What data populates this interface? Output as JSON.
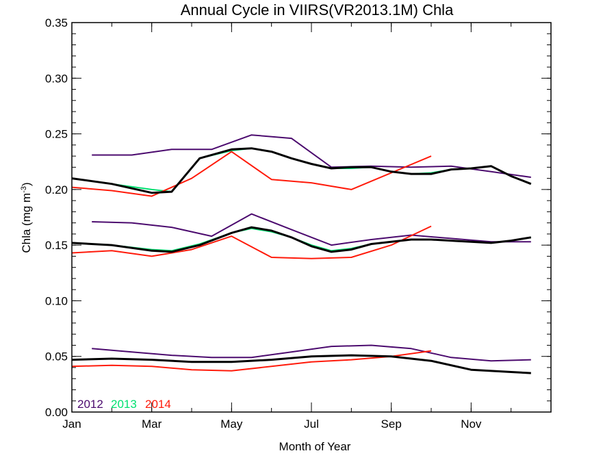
{
  "chart_data": {
    "type": "line",
    "title": "Annual Cycle in VIIRS(VR2013.1M) Chla",
    "xlabel": "Month of Year",
    "ylabel_main": "Chla (mg m",
    "ylabel_sup": "-3",
    "ylabel_close": ")",
    "xlim": [
      0,
      12
    ],
    "ylim": [
      0,
      0.35
    ],
    "x_ticks": [
      {
        "value": 0,
        "label": "Jan"
      },
      {
        "value": 2,
        "label": "Mar"
      },
      {
        "value": 4,
        "label": "May"
      },
      {
        "value": 6,
        "label": "Jul"
      },
      {
        "value": 8,
        "label": "Sep"
      },
      {
        "value": 10,
        "label": "Nov"
      }
    ],
    "y_ticks": [
      {
        "value": 0.0,
        "label": "0.00"
      },
      {
        "value": 0.05,
        "label": "0.05"
      },
      {
        "value": 0.1,
        "label": "0.10"
      },
      {
        "value": 0.15,
        "label": "0.15"
      },
      {
        "value": 0.2,
        "label": "0.20"
      },
      {
        "value": 0.25,
        "label": "0.25"
      },
      {
        "value": 0.3,
        "label": "0.30"
      },
      {
        "value": 0.35,
        "label": "0.35"
      }
    ],
    "y_minor_step": 0.01,
    "legend_position": "bottom-left",
    "legend": [
      {
        "label": "2012",
        "color": "#4b0a6e"
      },
      {
        "label": "2013",
        "color": "#00e070"
      },
      {
        "label": "2014",
        "color": "#ff1a0a"
      }
    ],
    "series": [
      {
        "name": "2012",
        "color": "#4b0a6e",
        "width": 2,
        "x": [
          0.5,
          1.5,
          2.5,
          3.5,
          4.5,
          5.5,
          6.5,
          7.5,
          8.5,
          9.5,
          10.5,
          11.5
        ],
        "y": [
          0.231,
          0.231,
          0.236,
          0.236,
          0.249,
          0.246,
          0.22,
          0.221,
          0.22,
          0.221,
          0.216,
          0.211
        ]
      },
      {
        "name": "2013",
        "color": "#00e070",
        "width": 2,
        "x": [
          0,
          1,
          2,
          2.5,
          3.2,
          4.0,
          4.5,
          5.0,
          5.5,
          6.0,
          6.5,
          7.0,
          7.5,
          8.0,
          8.5,
          9.0,
          9.5,
          10.0,
          10.5,
          11.0,
          11.5
        ],
        "y": [
          0.21,
          0.205,
          0.2,
          0.198,
          0.228,
          0.235,
          0.237,
          0.234,
          0.228,
          0.223,
          0.219,
          0.219,
          0.22,
          0.216,
          0.214,
          0.215,
          0.218,
          0.219,
          0.221,
          0.212,
          0.205
        ]
      },
      {
        "name": "2014",
        "color": "#ff1a0a",
        "width": 2,
        "x": [
          0,
          1,
          2,
          3,
          4,
          5,
          6,
          7,
          8,
          9
        ],
        "y": [
          0.202,
          0.199,
          0.194,
          0.21,
          0.234,
          0.209,
          0.206,
          0.2,
          0.215,
          0.23
        ]
      },
      {
        "name": "mean",
        "color": "#000000",
        "width": 3,
        "x": [
          0,
          1,
          2,
          2.5,
          3.2,
          4.0,
          4.5,
          5.0,
          5.5,
          6.0,
          6.5,
          7.0,
          7.5,
          8.0,
          8.5,
          9.0,
          9.5,
          10.0,
          10.5,
          11.0,
          11.5
        ],
        "y": [
          0.21,
          0.205,
          0.197,
          0.198,
          0.228,
          0.236,
          0.237,
          0.234,
          0.228,
          0.223,
          0.219,
          0.22,
          0.22,
          0.216,
          0.214,
          0.214,
          0.218,
          0.219,
          0.221,
          0.212,
          0.205
        ]
      },
      {
        "name": "2012",
        "color": "#4b0a6e",
        "width": 2,
        "x": [
          0.5,
          1.5,
          2.5,
          3.5,
          4.5,
          5.5,
          6.5,
          7.5,
          8.5,
          9.5,
          10.5,
          11.5
        ],
        "y": [
          0.171,
          0.17,
          0.166,
          0.158,
          0.178,
          0.164,
          0.15,
          0.155,
          0.159,
          0.156,
          0.153,
          0.153
        ]
      },
      {
        "name": "2013",
        "color": "#00e070",
        "width": 2,
        "x": [
          0,
          1,
          2,
          2.5,
          3.2,
          4.0,
          4.5,
          5.0,
          5.5,
          6.0,
          6.5,
          7.0,
          7.5,
          8.0,
          8.5,
          9.0,
          9.5,
          10.0,
          10.5,
          11.0,
          11.5
        ],
        "y": [
          0.152,
          0.15,
          0.146,
          0.145,
          0.151,
          0.161,
          0.165,
          0.162,
          0.157,
          0.15,
          0.145,
          0.147,
          0.151,
          0.153,
          0.155,
          0.155,
          0.154,
          0.153,
          0.152,
          0.154,
          0.157
        ]
      },
      {
        "name": "2014",
        "color": "#ff1a0a",
        "width": 2,
        "x": [
          0,
          1,
          2,
          3,
          4,
          5,
          6,
          7,
          8,
          9
        ],
        "y": [
          0.143,
          0.145,
          0.14,
          0.146,
          0.158,
          0.139,
          0.138,
          0.139,
          0.15,
          0.167
        ]
      },
      {
        "name": "mean",
        "color": "#000000",
        "width": 3,
        "x": [
          0,
          1,
          2,
          2.5,
          3.2,
          4.0,
          4.5,
          5.0,
          5.5,
          6.0,
          6.5,
          7.0,
          7.5,
          8.0,
          8.5,
          9.0,
          9.5,
          10.0,
          10.5,
          11.0,
          11.5
        ],
        "y": [
          0.152,
          0.15,
          0.145,
          0.144,
          0.15,
          0.161,
          0.166,
          0.163,
          0.157,
          0.149,
          0.144,
          0.146,
          0.151,
          0.153,
          0.155,
          0.155,
          0.154,
          0.153,
          0.152,
          0.154,
          0.157
        ]
      },
      {
        "name": "2012",
        "color": "#4b0a6e",
        "width": 2,
        "x": [
          0.5,
          1.5,
          2.5,
          3.5,
          4.5,
          5.5,
          6.5,
          7.5,
          8.5,
          9.5,
          10.5,
          11.5
        ],
        "y": [
          0.057,
          0.054,
          0.051,
          0.049,
          0.049,
          0.054,
          0.059,
          0.06,
          0.057,
          0.049,
          0.046,
          0.047
        ]
      },
      {
        "name": "2014",
        "color": "#ff1a0a",
        "width": 2,
        "x": [
          0,
          1,
          2,
          3,
          4,
          5,
          6,
          7,
          8,
          9
        ],
        "y": [
          0.041,
          0.042,
          0.041,
          0.038,
          0.037,
          0.041,
          0.045,
          0.047,
          0.05,
          0.055
        ]
      },
      {
        "name": "mean",
        "color": "#000000",
        "width": 3,
        "x": [
          0,
          1,
          2,
          3,
          4,
          5,
          6,
          7,
          8,
          9,
          10,
          11,
          11.5
        ],
        "y": [
          0.047,
          0.048,
          0.047,
          0.045,
          0.045,
          0.047,
          0.05,
          0.051,
          0.05,
          0.046,
          0.038,
          0.036,
          0.035
        ]
      }
    ]
  }
}
